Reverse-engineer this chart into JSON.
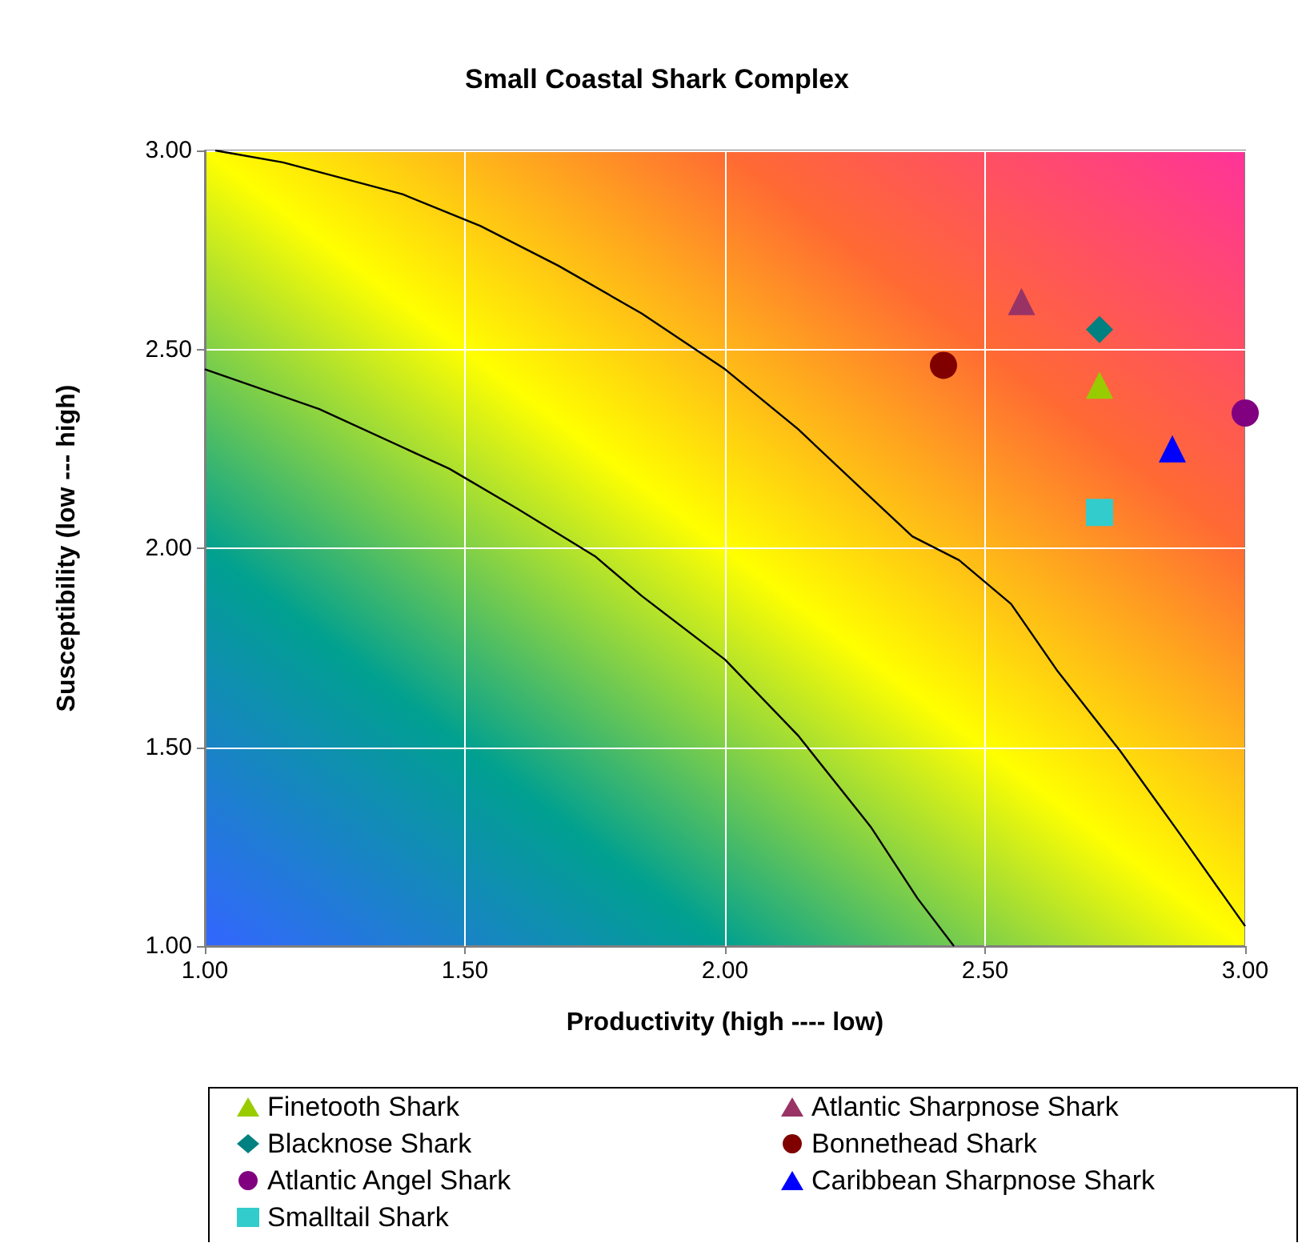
{
  "chart_data": {
    "type": "scatter",
    "title": "Small Coastal Shark Complex",
    "xlabel": "Productivity (high ---- low)",
    "ylabel": "Susceptibility (low --- high)",
    "xlim": [
      1,
      3
    ],
    "ylim": [
      1,
      3
    ],
    "xticks": [
      {
        "value": 1,
        "label": "1.00"
      },
      {
        "value": 1.5,
        "label": "1.50"
      },
      {
        "value": 2,
        "label": "2.00"
      },
      {
        "value": 2.5,
        "label": "2.50"
      },
      {
        "value": 3,
        "label": "3.00"
      }
    ],
    "yticks": [
      {
        "value": 1,
        "label": "1.00"
      },
      {
        "value": 1.5,
        "label": "1.50"
      },
      {
        "value": 2,
        "label": "2.00"
      },
      {
        "value": 2.5,
        "label": "2.50"
      },
      {
        "value": 3,
        "label": "3.00"
      }
    ],
    "grid": true,
    "legend": "bottom",
    "series": [
      {
        "name": "Finetooth Shark",
        "color": "#99cc00",
        "marker": "triangle",
        "x": [
          2.72
        ],
        "values": [
          2.41
        ]
      },
      {
        "name": "Atlantic Sharpnose Shark",
        "color": "#993366",
        "marker": "triangle",
        "x": [
          2.57
        ],
        "values": [
          2.62
        ]
      },
      {
        "name": "Blacknose Shark",
        "color": "#008080",
        "marker": "diamond",
        "x": [
          2.72
        ],
        "values": [
          2.55
        ]
      },
      {
        "name": "Bonnethead Shark",
        "color": "#800000",
        "marker": "circle",
        "x": [
          2.42
        ],
        "values": [
          2.46
        ]
      },
      {
        "name": "Atlantic Angel Shark",
        "color": "#800080",
        "marker": "circle",
        "x": [
          3.0
        ],
        "values": [
          2.34
        ]
      },
      {
        "name": "Caribbean Sharpnose Shark",
        "color": "#0000ff",
        "marker": "triangle",
        "x": [
          2.86
        ],
        "values": [
          2.25
        ]
      },
      {
        "name": "Smalltail Shark",
        "color": "#33cccc",
        "marker": "square",
        "x": [
          2.72
        ],
        "values": [
          2.09
        ]
      },
      {
        "type": "line",
        "color": "#000000",
        "marker": "none",
        "x": [
          1.02,
          1.15,
          1.38,
          1.53,
          1.68,
          1.84,
          2.0,
          2.14,
          2.27,
          2.36,
          2.45,
          2.55,
          2.64,
          2.76,
          2.87,
          3.0
        ],
        "values": [
          3.0,
          2.97,
          2.89,
          2.81,
          2.71,
          2.59,
          2.45,
          2.3,
          2.14,
          2.03,
          1.97,
          1.86,
          1.69,
          1.49,
          1.29,
          1.05
        ]
      },
      {
        "type": "line",
        "color": "#000000",
        "marker": "none",
        "x": [
          1.0,
          1.22,
          1.47,
          1.6,
          1.75,
          1.84,
          2.0,
          2.14,
          2.28,
          2.37,
          2.44
        ],
        "values": [
          2.45,
          2.35,
          2.2,
          2.1,
          1.98,
          1.88,
          1.72,
          1.53,
          1.3,
          1.12,
          1.0
        ]
      }
    ]
  }
}
